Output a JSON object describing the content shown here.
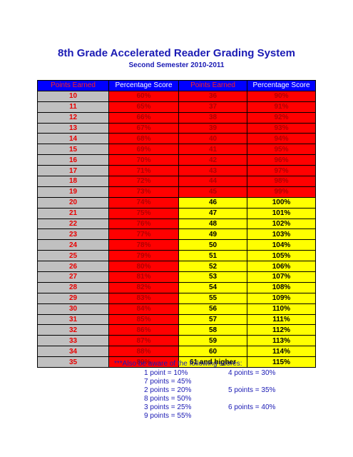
{
  "title": "8th Grade Accelerated Reader Grading System",
  "subtitle": "Second Semester 2010-2011",
  "headers": [
    "Points Earned",
    "Percentage Score",
    "Points Earned",
    "Percentage Score"
  ],
  "rows": [
    {
      "p1": "10",
      "s1": "60%",
      "p2": "36",
      "s2": "90%"
    },
    {
      "p1": "11",
      "s1": "65%",
      "p2": "37",
      "s2": "91%"
    },
    {
      "p1": "12",
      "s1": "66%",
      "p2": "38",
      "s2": "92%"
    },
    {
      "p1": "13",
      "s1": "67%",
      "p2": "39",
      "s2": "93%"
    },
    {
      "p1": "14",
      "s1": "68%",
      "p2": "40",
      "s2": "94%"
    },
    {
      "p1": "15",
      "s1": "69%",
      "p2": "41",
      "s2": "95%"
    },
    {
      "p1": "16",
      "s1": "70%",
      "p2": "42",
      "s2": "96%"
    },
    {
      "p1": "17",
      "s1": "71%",
      "p2": "43",
      "s2": "97%"
    },
    {
      "p1": "18",
      "s1": "72%",
      "p2": "44",
      "s2": "98%"
    },
    {
      "p1": "19",
      "s1": "73%",
      "p2": "45",
      "s2": "99%"
    },
    {
      "p1": "20",
      "s1": "74%",
      "p2": "46",
      "s2": "100%"
    },
    {
      "p1": "21",
      "s1": "75%",
      "p2": "47",
      "s2": "101%"
    },
    {
      "p1": "22",
      "s1": "76%",
      "p2": "48",
      "s2": "102%"
    },
    {
      "p1": "23",
      "s1": "77%",
      "p2": "49",
      "s2": "103%"
    },
    {
      "p1": "24",
      "s1": "78%",
      "p2": "50",
      "s2": "104%"
    },
    {
      "p1": "25",
      "s1": "79%",
      "p2": "51",
      "s2": "105%"
    },
    {
      "p1": "26",
      "s1": "80%",
      "p2": "52",
      "s2": "106%"
    },
    {
      "p1": "27",
      "s1": "81%",
      "p2": "53",
      "s2": "107%"
    },
    {
      "p1": "28",
      "s1": "82%",
      "p2": "54",
      "s2": "108%"
    },
    {
      "p1": "29",
      "s1": "83%",
      "p2": "55",
      "s2": "109%"
    },
    {
      "p1": "30",
      "s1": "84%",
      "p2": "56",
      "s2": "110%"
    },
    {
      "p1": "31",
      "s1": "85%",
      "p2": "57",
      "s2": "111%"
    },
    {
      "p1": "32",
      "s1": "86%",
      "p2": "58",
      "s2": "112%"
    },
    {
      "p1": "33",
      "s1": "87%",
      "p2": "59",
      "s2": "113%"
    },
    {
      "p1": "34",
      "s1": "88%",
      "p2": "60",
      "s2": "114%"
    },
    {
      "p1": "35",
      "s1": "89%",
      "p2": "61 and higher",
      "s2": "115%"
    }
  ],
  "notes": {
    "intro": "***Also be aware of the following scores:",
    "line1a": "1  point   = 10%",
    "line1b": "4 points = 30%",
    "line2": "7 points =  45%",
    "line3a": "2  points = 20%",
    "line3b": "5 points = 35%",
    "line4": "8 points =  50%",
    "line5a": "3  points = 25%",
    "line5b": "6 points = 40%",
    "line6": "9 points =  55%"
  },
  "colors": {
    "header_bg": "#0000ff",
    "gray_cell": "#c0c0c0",
    "red_cell": "#ff0000",
    "yellow_cell": "#ffff00",
    "title_text": "#1a1ab4"
  }
}
